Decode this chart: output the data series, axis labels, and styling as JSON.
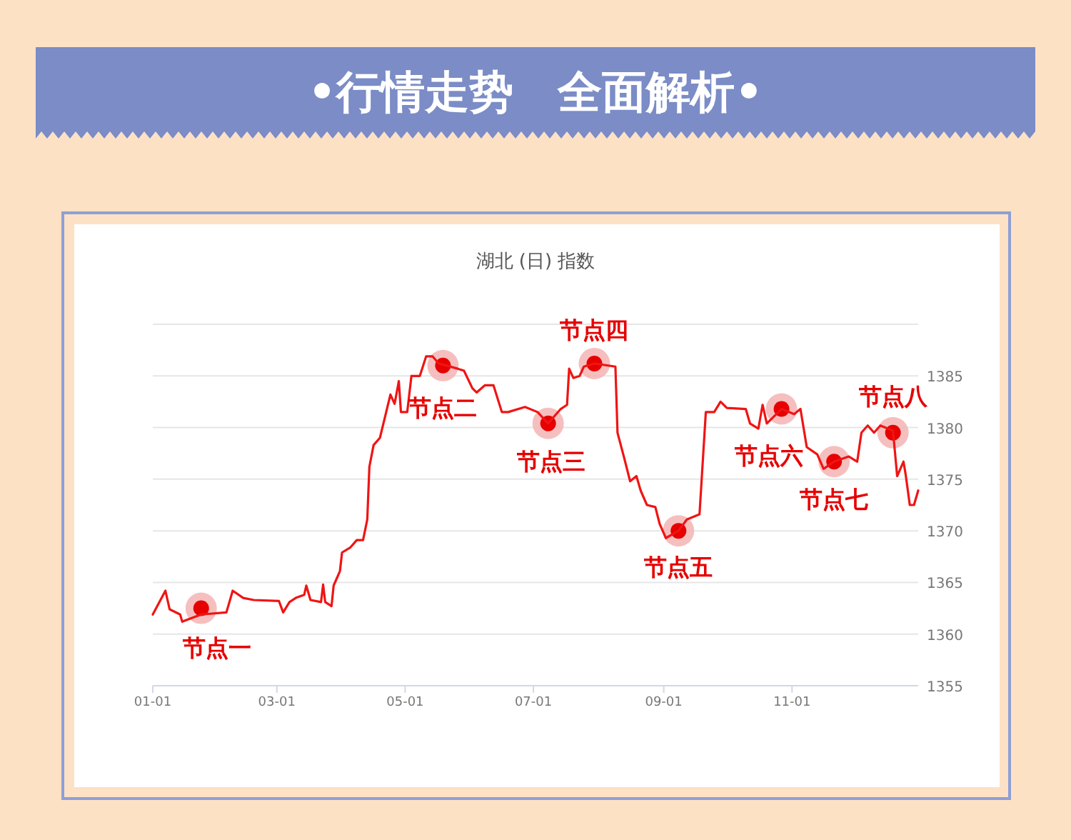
{
  "chart_data": {
    "type": "line",
    "title": "•行情走势　全面解析•",
    "subtitle": "湖北 (日) 指数",
    "xlim": [
      "--01-01",
      "--12-31"
    ],
    "ylim": [
      1355,
      1390
    ],
    "xticks": [
      {
        "value": "--01-01",
        "label": "01-01"
      },
      {
        "value": "--03-01",
        "label": "03-01"
      },
      {
        "value": "--05-01",
        "label": "05-01"
      },
      {
        "value": "--07-01",
        "label": "07-01"
      },
      {
        "value": "--09-01",
        "label": "09-01"
      },
      {
        "value": "--11-01",
        "label": "11-01"
      }
    ],
    "yticks": [
      1355,
      1360,
      1365,
      1370,
      1375,
      1380,
      1385,
      {
        "value": 1390,
        "label": null
      }
    ],
    "grid": "y",
    "marker": "none",
    "line_style": "solid",
    "series": [
      {
        "color": "#f01414",
        "x": [
          "--01-01",
          "--01-07",
          "--01-09",
          "--01-14",
          "--01-15",
          "--01-24",
          "--02-05",
          "--02-08",
          "--02-13",
          "--02-18",
          "--03-02",
          "--03-04",
          "--03-07",
          "--03-10",
          "--03-14",
          "--03-15",
          "--03-17",
          "--03-22",
          "--03-23",
          "--03-24",
          "--03-27",
          "--03-28",
          "--03-31",
          "--04-01",
          "--04-05",
          "--04-08",
          "--04-11",
          "--04-13",
          "--04-14",
          "--04-16",
          "--04-19",
          "--04-22",
          "--04-24",
          "--04-26",
          "--04-28",
          "--04-29",
          "--05-02",
          "--05-04",
          "--05-08",
          "--05-11",
          "--05-14",
          "--05-17",
          "--05-26",
          "--05-29",
          "--06-02",
          "--06-04",
          "--06-08",
          "--06-12",
          "--06-16",
          "--06-19",
          "--06-27",
          "--07-03",
          "--07-08",
          "--07-14",
          "--07-17",
          "--07-18",
          "--07-20",
          "--07-23",
          "--07-25",
          "--07-30",
          "--08-09",
          "--08-10",
          "--08-13",
          "--08-16",
          "--08-19",
          "--08-21",
          "--08-24",
          "--08-28",
          "--08-30",
          "--09-02",
          "--09-08",
          "--09-12",
          "--09-18",
          "--09-21",
          "--09-25",
          "--09-28",
          "--10-01",
          "--10-10",
          "--10-12",
          "--10-16",
          "--10-18",
          "--10-20",
          "--10-27",
          "--11-02",
          "--11-05",
          "--11-08",
          "--11-13",
          "--11-16",
          "--11-21",
          "--11-28",
          "--12-02",
          "--12-04",
          "--12-07",
          "--12-10",
          "--12-13",
          "--12-19",
          "--12-21",
          "--12-24",
          "--12-25",
          "--12-27",
          "--12-29",
          "--12-31"
        ],
        "values": [
          1361.9,
          1364.2,
          1362.4,
          1361.9,
          1361.2,
          1361.9,
          1362.1,
          1364.2,
          1363.5,
          1363.3,
          1363.2,
          1362.1,
          1363.1,
          1363.5,
          1363.8,
          1364.7,
          1363.3,
          1363.1,
          1364.8,
          1363.1,
          1362.7,
          1364.7,
          1366.1,
          1367.9,
          1368.4,
          1369.1,
          1369.1,
          1371.1,
          1376.2,
          1378.3,
          1379,
          1381.5,
          1383.2,
          1382.3,
          1384.5,
          1381.5,
          1381.5,
          1385,
          1385,
          1386.9,
          1386.9,
          1386.2,
          1385.7,
          1385.5,
          1383.8,
          1383.4,
          1384.1,
          1384.1,
          1381.5,
          1381.5,
          1382,
          1381.5,
          1380.4,
          1381.8,
          1382.2,
          1385.7,
          1384.8,
          1385,
          1385.9,
          1386.2,
          1385.9,
          1379.5,
          1377.2,
          1374.8,
          1375.3,
          1373.9,
          1372.5,
          1372.3,
          1370.7,
          1369.3,
          1370,
          1371.1,
          1371.6,
          1381.5,
          1381.5,
          1382.5,
          1381.9,
          1381.8,
          1380.4,
          1379.9,
          1382.2,
          1380.4,
          1381.8,
          1381.3,
          1381.8,
          1378.1,
          1377.4,
          1376,
          1376.7,
          1377.2,
          1376.7,
          1379.5,
          1380.2,
          1379.5,
          1380.2,
          1379.7,
          1375.3,
          1376.7,
          1375.5,
          1372.5,
          1372.5,
          1373.9
        ]
      }
    ],
    "annotations": [
      {
        "text": "节点一",
        "x": "--01-24",
        "y": 1362.5
      },
      {
        "text": "节点二",
        "x": "--05-19",
        "y": 1386
      },
      {
        "text": "节点三",
        "x": "--07-08",
        "y": 1380.4
      },
      {
        "text": "节点四",
        "x": "--07-30",
        "y": 1386.2
      },
      {
        "text": "节点五",
        "x": "--09-08",
        "y": 1370
      },
      {
        "text": "节点六",
        "x": "--10-27",
        "y": 1381.8
      },
      {
        "text": "节点七",
        "x": "--11-21",
        "y": 1376.7
      },
      {
        "text": "节点八",
        "x": "--12-19",
        "y": 1379.5
      }
    ]
  }
}
